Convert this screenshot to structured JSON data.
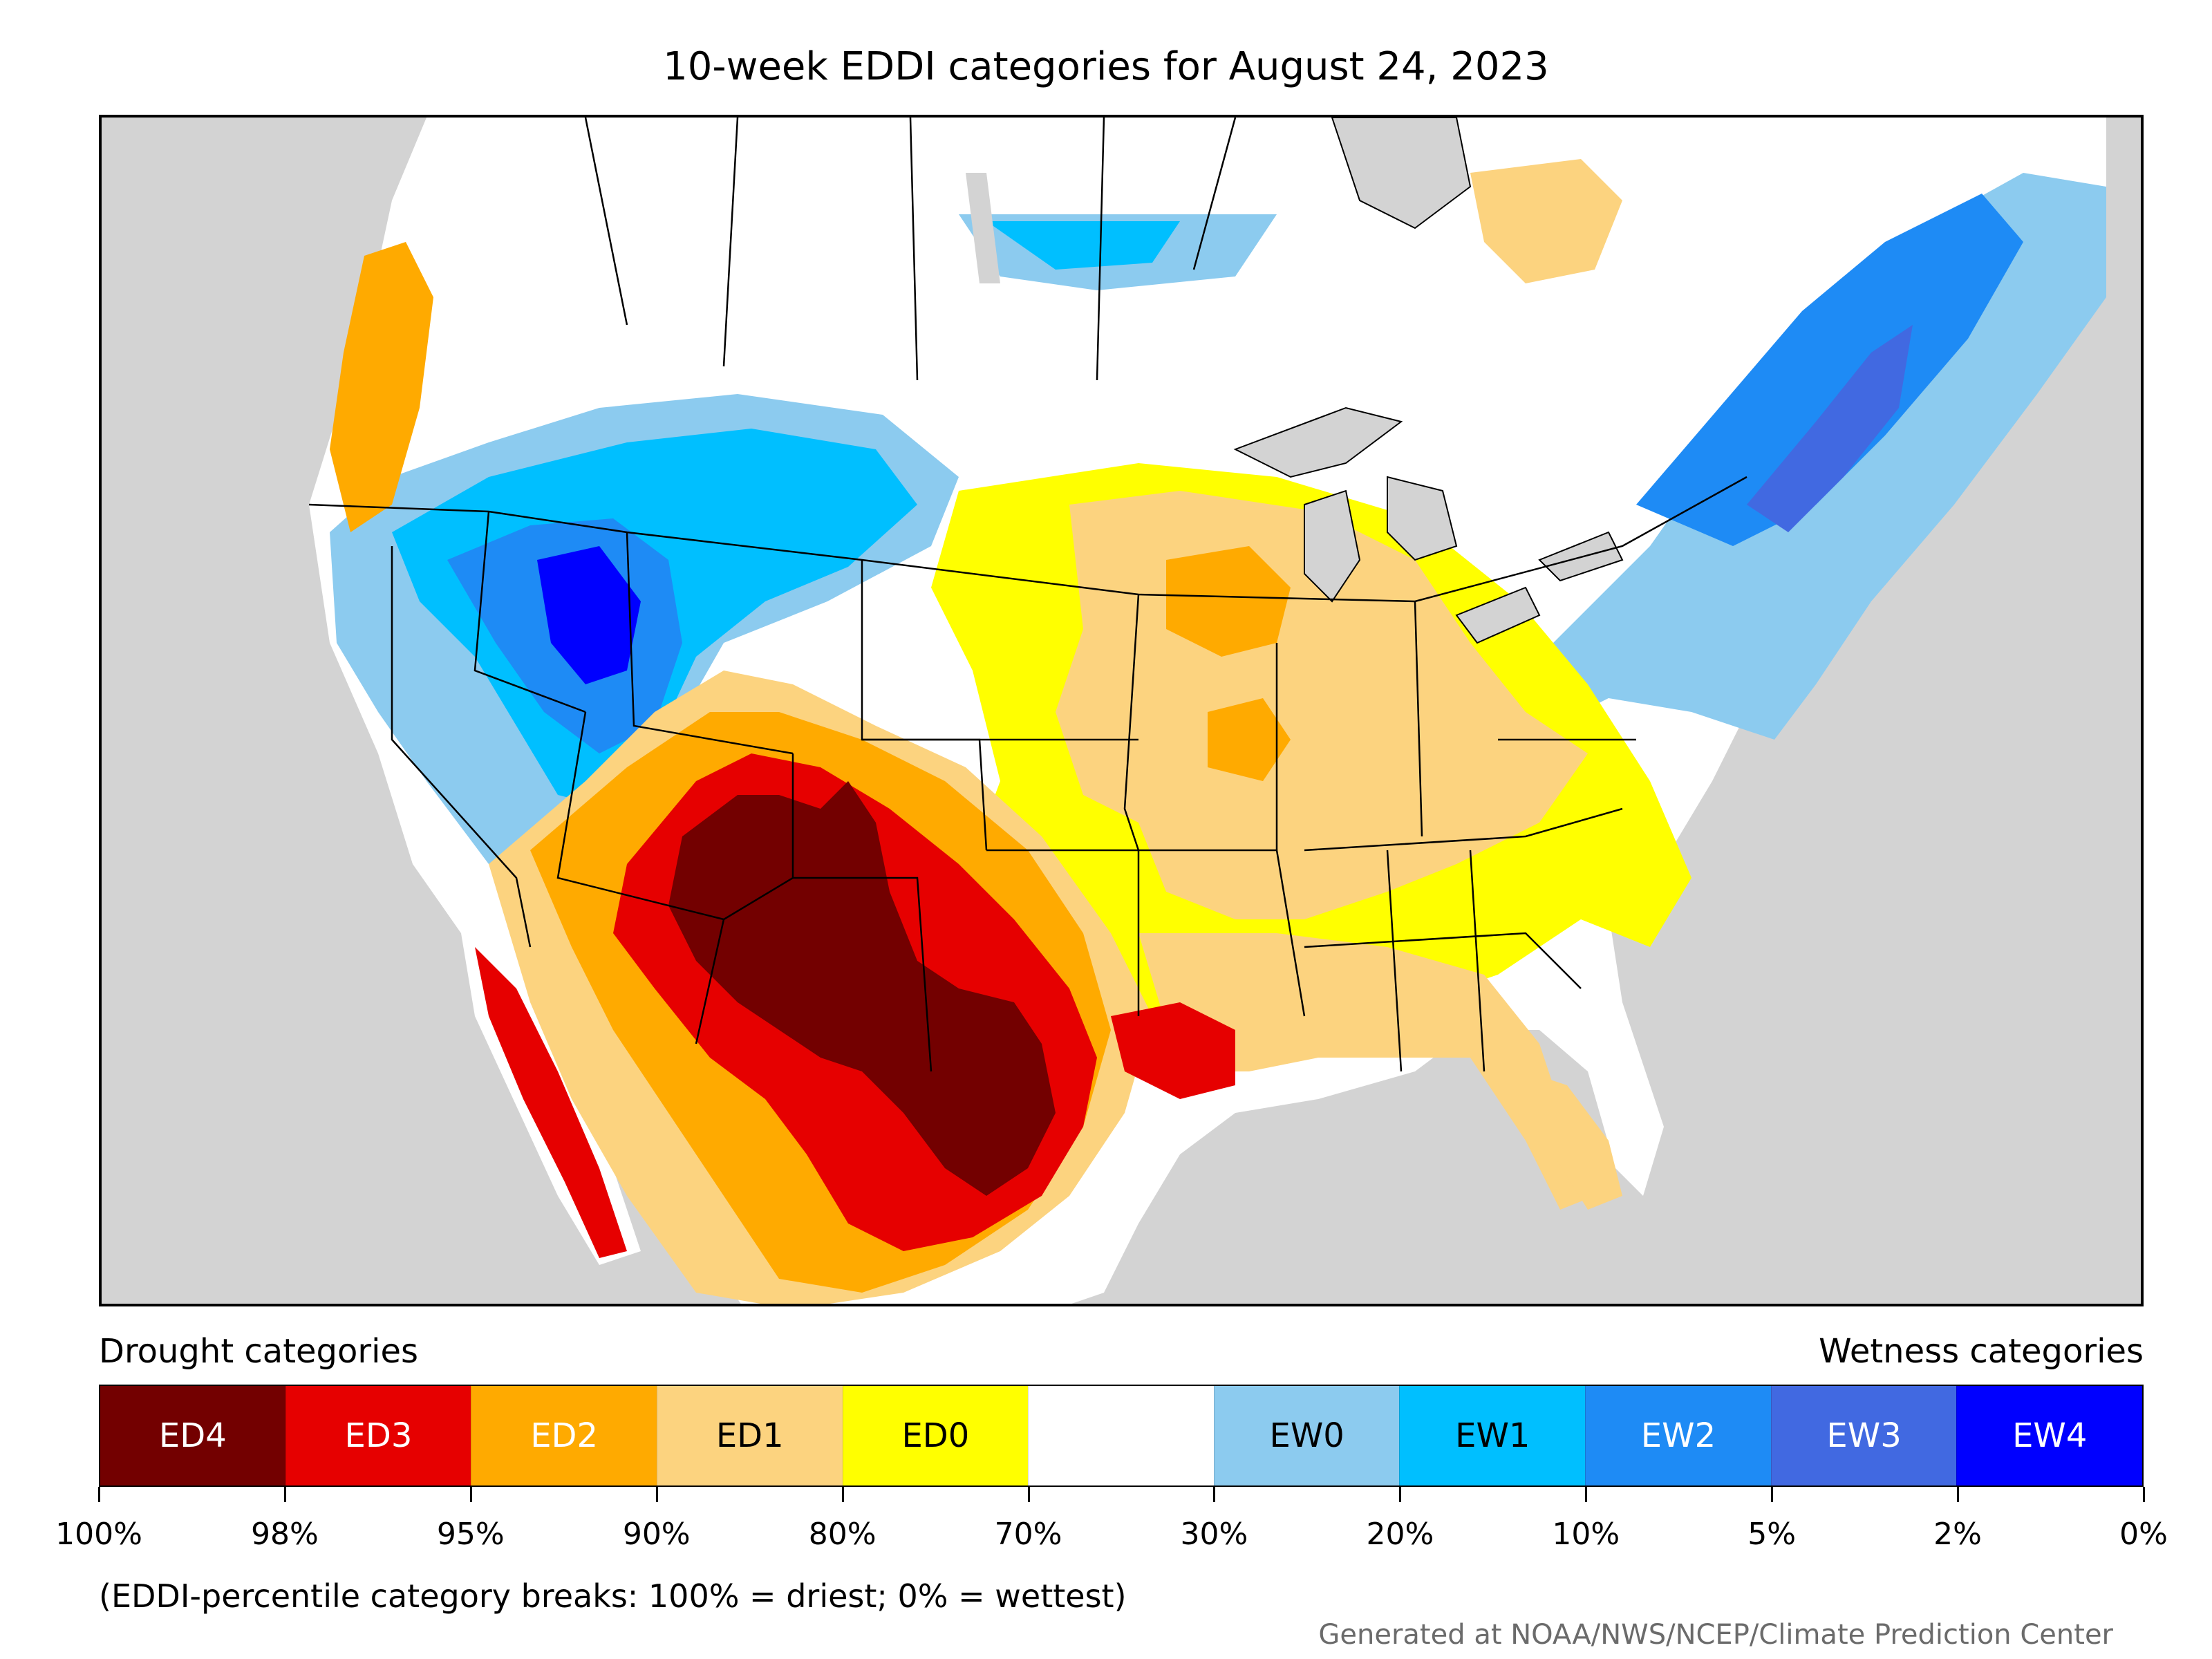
{
  "title": "10-week EDDI categories for August 24, 2023",
  "legend": {
    "drought_heading": "Drought categories",
    "wetness_heading": "Wetness categories",
    "categories": [
      {
        "label": "ED4",
        "color": "#730000",
        "text_color": "#ffffff"
      },
      {
        "label": "ED3",
        "color": "#e60000",
        "text_color": "#ffffff"
      },
      {
        "label": "ED2",
        "color": "#ffaa00",
        "text_color": "#ffffff"
      },
      {
        "label": "ED1",
        "color": "#fcd37f",
        "text_color": "#000000"
      },
      {
        "label": "ED0",
        "color": "#ffff00",
        "text_color": "#000000"
      },
      {
        "label": "",
        "color": "#ffffff",
        "text_color": "#000000"
      },
      {
        "label": "EW0",
        "color": "#8ccbef",
        "text_color": "#000000"
      },
      {
        "label": "EW1",
        "color": "#00bfff",
        "text_color": "#000000"
      },
      {
        "label": "EW2",
        "color": "#1e8bf5",
        "text_color": "#ffffff"
      },
      {
        "label": "EW3",
        "color": "#4169e1",
        "text_color": "#ffffff"
      },
      {
        "label": "EW4",
        "color": "#0000ff",
        "text_color": "#ffffff"
      }
    ],
    "breaks": [
      "100%",
      "98%",
      "95%",
      "90%",
      "80%",
      "70%",
      "30%",
      "20%",
      "10%",
      "5%",
      "2%",
      "0%"
    ]
  },
  "note": "(EDDI-percentile category breaks: 100% = driest; 0% = wettest)",
  "credit": "Generated at NOAA/NWS/NCEP/Climate Prediction Center",
  "colors": {
    "ocean": "#d3d3d3",
    "land_neutral": "#ffffff",
    "borders": "#000000"
  }
}
